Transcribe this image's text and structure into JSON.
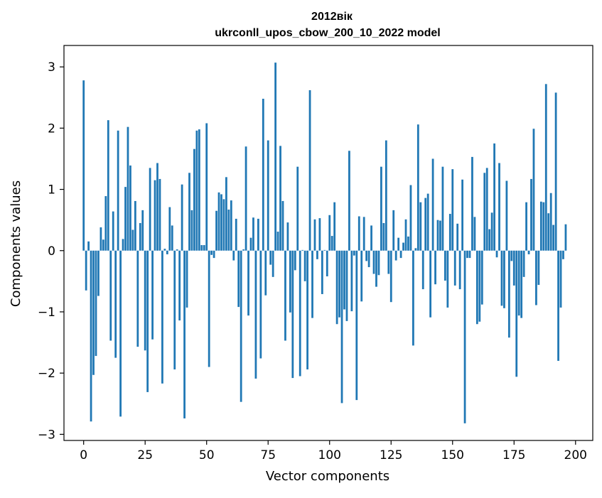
{
  "chart_data": {
    "type": "bar",
    "title": "2012вік",
    "subtitle": "ukrconll_upos_cbow_200_10_2022 model",
    "xlabel": "Vector components",
    "ylabel": "Components values",
    "xlim": [
      -8,
      207
    ],
    "ylim": [
      -3.1,
      3.35
    ],
    "xticks": [
      0,
      25,
      50,
      75,
      100,
      125,
      150,
      175,
      200
    ],
    "xtick_labels": [
      "0",
      "25",
      "50",
      "75",
      "100",
      "125",
      "150",
      "175",
      "200"
    ],
    "yticks": [
      -3,
      -2,
      -1,
      0,
      1,
      2,
      3
    ],
    "ytick_labels": [
      "−3",
      "−2",
      "−1",
      "0",
      "1",
      "2",
      "3"
    ],
    "grid": false,
    "legend": "none",
    "bar_color": "#1f77b4",
    "values": [
      2.78,
      -0.65,
      0.15,
      -2.79,
      -2.03,
      -1.72,
      -0.74,
      0.38,
      0.18,
      0.89,
      2.13,
      -1.47,
      0.64,
      -1.75,
      1.96,
      -2.71,
      0.19,
      1.04,
      2.02,
      1.39,
      0.34,
      0.81,
      -1.57,
      0.45,
      0.66,
      -1.63,
      -2.31,
      1.35,
      -1.45,
      1.15,
      1.43,
      1.17,
      -2.17,
      0.03,
      -0.06,
      0.71,
      0.41,
      -1.94,
      0.02,
      -1.14,
      1.08,
      -2.74,
      -0.93,
      1.27,
      0.66,
      1.66,
      1.96,
      1.98,
      0.09,
      0.09,
      2.08,
      -1.9,
      -0.07,
      -0.12,
      0.65,
      0.95,
      0.92,
      0.84,
      1.2,
      0.67,
      0.82,
      -0.16,
      0.52,
      -0.92,
      -2.47,
      0.02,
      1.7,
      -1.06,
      0.21,
      0.54,
      -2.09,
      0.52,
      -1.76,
      2.48,
      -0.73,
      1.8,
      -0.23,
      -0.43,
      3.07,
      0.31,
      1.71,
      0.81,
      -1.47,
      0.46,
      -1.01,
      -2.08,
      -0.32,
      1.37,
      -2.05,
      0.01,
      -0.5,
      -1.94,
      2.62,
      -1.1,
      0.51,
      -0.14,
      0.53,
      -0.71,
      0.01,
      -0.42,
      0.58,
      0.24,
      0.79,
      -1.2,
      -1.09,
      -2.49,
      -0.96,
      -1.15,
      1.63,
      -0.99,
      -0.08,
      -2.44,
      0.56,
      -0.83,
      0.55,
      -0.17,
      -0.27,
      0.41,
      -0.38,
      -0.59,
      -0.4,
      1.37,
      0.45,
      1.8,
      -0.38,
      -0.84,
      0.66,
      -0.16,
      0.21,
      -0.12,
      0.13,
      0.51,
      0.23,
      1.07,
      -1.55,
      0.04,
      2.06,
      0.79,
      -0.63,
      0.86,
      0.93,
      -1.09,
      1.5,
      -0.55,
      0.5,
      0.49,
      1.37,
      -0.49,
      -0.93,
      0.6,
      1.33,
      -0.57,
      0.44,
      -0.63,
      1.16,
      -2.82,
      -0.12,
      -0.12,
      1.53,
      0.55,
      -1.2,
      -1.16,
      -0.88,
      1.27,
      1.35,
      0.35,
      0.62,
      1.75,
      -0.11,
      1.43,
      -0.9,
      -0.94,
      1.14,
      -1.42,
      -0.17,
      -0.57,
      -2.06,
      -1.06,
      -1.1,
      -0.43,
      0.79,
      -0.06,
      1.17,
      1.99,
      -0.89,
      -0.56,
      0.8,
      0.79,
      2.72,
      0.61,
      0.94,
      0.42,
      2.58,
      -1.8,
      -0.93,
      -0.14,
      0.43
    ]
  }
}
